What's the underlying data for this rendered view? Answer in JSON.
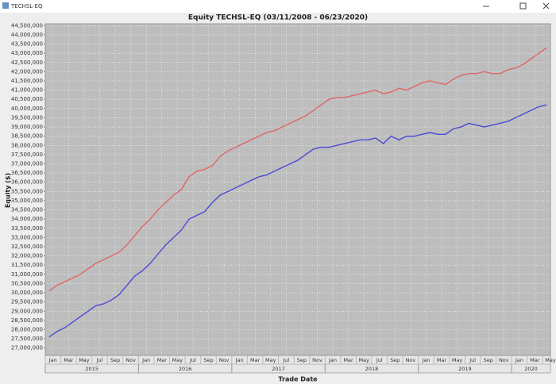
{
  "window_title": "TECHSL-EQ",
  "chart_data": {
    "type": "line",
    "title": "Equity TECHSL-EQ (03/11/2008 - 06/23/2020)",
    "x_label": "Trade Date",
    "y_label": "Equity ($)",
    "categories": [
      "Jan",
      null,
      "Mar",
      null,
      "May",
      null,
      "Jul",
      null,
      "Sep",
      null,
      "Nov",
      null,
      "Jan",
      null,
      "Mar",
      null,
      "May",
      null,
      "Jul",
      null,
      "Sep",
      null,
      "Nov",
      null,
      "Jan",
      null,
      "Mar",
      null,
      "May",
      null,
      "Jul",
      null,
      "Sep",
      null,
      "Nov",
      null,
      "Jan",
      null,
      "Mar",
      null,
      "May",
      null,
      "Jul",
      null,
      "Sep",
      null,
      "Nov",
      null,
      "Jan",
      null,
      "Mar",
      null,
      "May",
      null,
      "Jul",
      null,
      "Sep",
      null,
      "Nov",
      null,
      "Jan",
      null,
      "Mar",
      null,
      "May"
    ],
    "years": [
      "2015",
      "2016",
      "2017",
      "2018",
      "2019",
      "2020"
    ],
    "series": [
      {
        "color": "#e06666",
        "values": [
          30100000,
          30400000,
          30600000,
          30800000,
          31000000,
          31300000,
          31600000,
          31800000,
          32000000,
          32200000,
          32600000,
          33100000,
          33600000,
          34000000,
          34500000,
          34900000,
          35300000,
          35600000,
          36300000,
          36600000,
          36700000,
          36900000,
          37400000,
          37700000,
          37900000,
          38100000,
          38300000,
          38500000,
          38700000,
          38800000,
          39000000,
          39200000,
          39400000,
          39600000,
          39900000,
          40200000,
          40500000,
          40600000,
          40600000,
          40700000,
          40800000,
          40900000,
          41000000,
          40800000,
          40900000,
          41100000,
          41000000,
          41200000,
          41400000,
          41500000,
          41400000,
          41300000,
          41600000,
          41800000,
          41900000,
          41900000,
          42000000,
          41900000,
          41900000,
          42100000,
          42200000,
          42400000,
          42700000,
          43000000,
          43300000
        ]
      },
      {
        "color": "#4a4ad6",
        "values": [
          27600000,
          27900000,
          28100000,
          28400000,
          28700000,
          29000000,
          29300000,
          29400000,
          29600000,
          29900000,
          30400000,
          30900000,
          31200000,
          31600000,
          32100000,
          32600000,
          33000000,
          33400000,
          34000000,
          34200000,
          34400000,
          34900000,
          35300000,
          35500000,
          35700000,
          35900000,
          36100000,
          36300000,
          36400000,
          36600000,
          36800000,
          37000000,
          37200000,
          37500000,
          37800000,
          37900000,
          37900000,
          38000000,
          38100000,
          38200000,
          38300000,
          38300000,
          38400000,
          38100000,
          38500000,
          38300000,
          38500000,
          38500000,
          38600000,
          38700000,
          38600000,
          38600000,
          38900000,
          39000000,
          39200000,
          39100000,
          39000000,
          39100000,
          39200000,
          39300000,
          39500000,
          39700000,
          39900000,
          40100000,
          40200000
        ]
      }
    ],
    "ylim": [
      26600000,
      44600000
    ],
    "yticks": [
      {
        "value": 27000000,
        "label": "27,000,000"
      },
      {
        "value": 27500000,
        "label": "27,500,000"
      },
      {
        "value": 28000000,
        "label": "28,000,000"
      },
      {
        "value": 28500000,
        "label": "28,500,000"
      },
      {
        "value": 29000000,
        "label": "29,000,000"
      },
      {
        "value": 29500000,
        "label": "29,500,000"
      },
      {
        "value": 30000000,
        "label": "30,000,000"
      },
      {
        "value": 30500000,
        "label": "30,500,000"
      },
      {
        "value": 31000000,
        "label": "31,000,000"
      },
      {
        "value": 31500000,
        "label": "31,500,000"
      },
      {
        "value": 32000000,
        "label": "32,000,000"
      },
      {
        "value": 32500000,
        "label": "32,500,000"
      },
      {
        "value": 33000000,
        "label": "33,000,000"
      },
      {
        "value": 33500000,
        "label": "33,500,000"
      },
      {
        "value": 34000000,
        "label": "34,000,000"
      },
      {
        "value": 34500000,
        "label": "34,500,000"
      },
      {
        "value": 35000000,
        "label": "35,000,000"
      },
      {
        "value": 35500000,
        "label": "35,500,000"
      },
      {
        "value": 36000000,
        "label": "36,000,000"
      },
      {
        "value": 36500000,
        "label": "36,500,000"
      },
      {
        "value": 37000000,
        "label": "37,000,000"
      },
      {
        "value": 37500000,
        "label": "37,500,000"
      },
      {
        "value": 38000000,
        "label": "38,000,000"
      },
      {
        "value": 38500000,
        "label": "38,500,000"
      },
      {
        "value": 39000000,
        "label": "39,000,000"
      },
      {
        "value": 39500000,
        "label": "39,500,000"
      },
      {
        "value": 40000000,
        "label": "40,000,000"
      },
      {
        "value": 40500000,
        "label": "40,500,000"
      },
      {
        "value": 41000000,
        "label": "41,000,000"
      },
      {
        "value": 41500000,
        "label": "41,500,000"
      },
      {
        "value": 42000000,
        "label": "42,000,000"
      },
      {
        "value": 42500000,
        "label": "42,500,000"
      },
      {
        "value": 43000000,
        "label": "43,000,000"
      },
      {
        "value": 43500000,
        "label": "43,500,000"
      },
      {
        "value": 44000000,
        "label": "44,000,000"
      },
      {
        "value": 44500000,
        "label": "44,500,000"
      }
    ],
    "grid": true
  }
}
